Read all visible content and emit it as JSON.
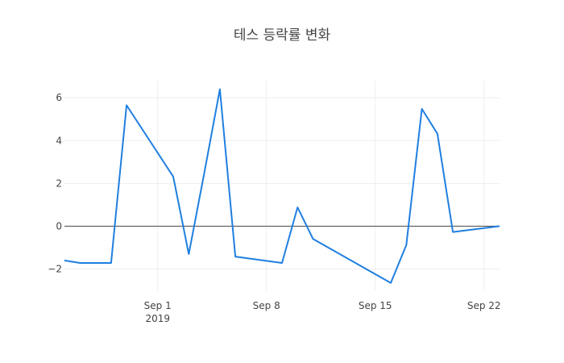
{
  "chart_data": {
    "type": "line",
    "title": "테스 등락률 변화",
    "xlabel": "",
    "ylabel": "",
    "ylim": [
      -3.0,
      6.8
    ],
    "xlim": [
      "2019-08-26",
      "2019-09-23"
    ],
    "yticks": [
      -2,
      0,
      2,
      4,
      6
    ],
    "ytick_labels": [
      "−2",
      "0",
      "2",
      "4",
      "6"
    ],
    "xticks": [
      {
        "date": "2019-09-01",
        "label": "Sep 1",
        "sublabel": "2019"
      },
      {
        "date": "2019-09-08",
        "label": "Sep 8",
        "sublabel": ""
      },
      {
        "date": "2019-09-15",
        "label": "Sep 15",
        "sublabel": ""
      },
      {
        "date": "2019-09-22",
        "label": "Sep 22",
        "sublabel": ""
      }
    ],
    "grid": true,
    "zero_line": true,
    "series": [
      {
        "color": "#1f7fe0",
        "x": [
          "2019-08-26",
          "2019-08-27",
          "2019-08-28",
          "2019-08-29",
          "2019-08-30",
          "2019-09-02",
          "2019-09-03",
          "2019-09-04",
          "2019-09-05",
          "2019-09-06",
          "2019-09-09",
          "2019-09-10",
          "2019-09-11",
          "2019-09-16",
          "2019-09-17",
          "2019-09-18",
          "2019-09-19",
          "2019-09-20",
          "2019-09-23"
        ],
        "y": [
          -1.6,
          -1.72,
          -1.72,
          -1.72,
          5.65,
          2.32,
          -1.3,
          2.5,
          6.4,
          -1.42,
          -1.72,
          0.88,
          -0.6,
          -2.65,
          -0.88,
          5.48,
          4.32,
          -0.27,
          0.0
        ]
      }
    ]
  }
}
